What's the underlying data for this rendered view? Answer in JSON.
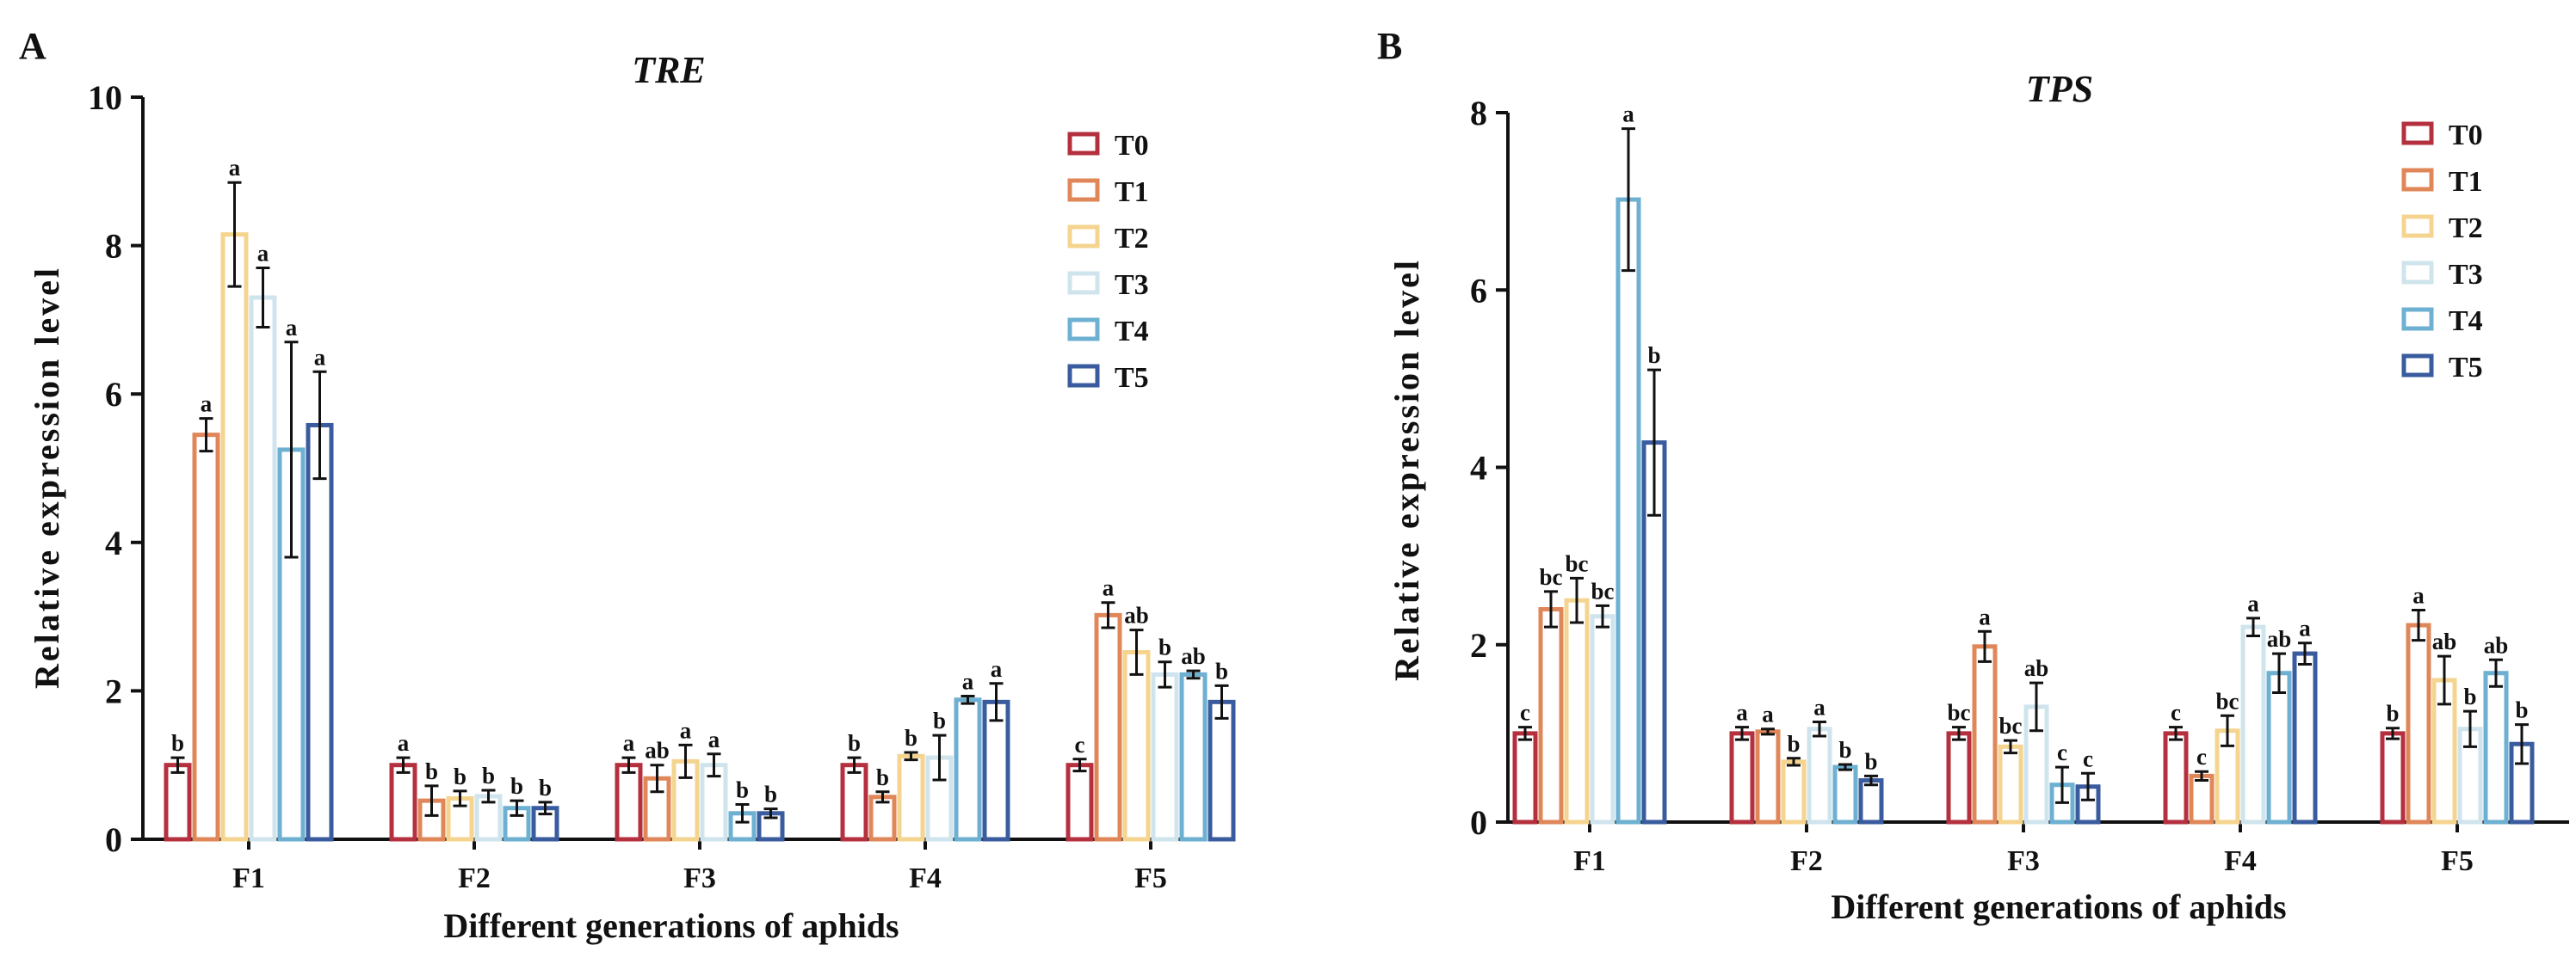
{
  "chart_data": [
    {
      "type": "bar",
      "panel_label": "A",
      "title": "TRE",
      "xlabel": "Different generations of aphids",
      "ylabel": "Relative expression level",
      "ylim": [
        0,
        10
      ],
      "yticks": [
        "0",
        "2",
        "4",
        "6",
        "8",
        "10"
      ],
      "categories": [
        "F1",
        "F2",
        "F3",
        "F4",
        "F5"
      ],
      "legend_position": "top-right",
      "series": [
        {
          "name": "T0",
          "color": "#b5303f",
          "values": [
            1.0,
            1.0,
            1.0,
            1.0,
            1.0
          ],
          "errors": [
            0.1,
            0.1,
            0.1,
            0.1,
            0.08
          ],
          "letters": [
            "b",
            "a",
            "a",
            "b",
            "c"
          ]
        },
        {
          "name": "T1",
          "color": "#e0875a",
          "values": [
            5.45,
            0.52,
            0.82,
            0.57,
            3.02
          ],
          "errors": [
            0.22,
            0.2,
            0.18,
            0.07,
            0.17
          ],
          "letters": [
            "a",
            "b",
            "ab",
            "b",
            "a"
          ]
        },
        {
          "name": "T2",
          "color": "#f4d48f",
          "values": [
            8.15,
            0.55,
            1.05,
            1.12,
            2.52
          ],
          "errors": [
            0.7,
            0.1,
            0.22,
            0.05,
            0.3
          ],
          "letters": [
            "a",
            "b",
            "a",
            "b",
            "ab"
          ]
        },
        {
          "name": "T3",
          "color": "#cfe4ec",
          "values": [
            7.3,
            0.58,
            1.0,
            1.1,
            2.22
          ],
          "errors": [
            0.4,
            0.08,
            0.15,
            0.3,
            0.17
          ],
          "letters": [
            "a",
            "b",
            "a",
            "b",
            "b"
          ]
        },
        {
          "name": "T4",
          "color": "#6db0d2",
          "values": [
            5.25,
            0.42,
            0.35,
            1.88,
            2.22
          ],
          "errors": [
            1.45,
            0.1,
            0.12,
            0.05,
            0.05
          ],
          "letters": [
            "a",
            "b",
            "b",
            "a",
            "ab"
          ]
        },
        {
          "name": "T5",
          "color": "#3a5c9e",
          "values": [
            5.58,
            0.42,
            0.35,
            1.85,
            1.85
          ],
          "errors": [
            0.72,
            0.08,
            0.06,
            0.25,
            0.22
          ],
          "letters": [
            "a",
            "b",
            "b",
            "a",
            "b"
          ]
        }
      ]
    },
    {
      "type": "bar",
      "panel_label": "B",
      "title": "TPS",
      "xlabel": "Different generations of aphids",
      "ylabel": "Relative expression level",
      "ylim": [
        0,
        8
      ],
      "yticks": [
        "0",
        "2",
        "4",
        "6",
        "8"
      ],
      "categories": [
        "F1",
        "F2",
        "F3",
        "F4",
        "F5"
      ],
      "legend_position": "top-right",
      "series": [
        {
          "name": "T0",
          "color": "#b5303f",
          "values": [
            1.0,
            1.0,
            1.0,
            1.0,
            1.0
          ],
          "errors": [
            0.07,
            0.07,
            0.07,
            0.07,
            0.06
          ],
          "letters": [
            "c",
            "a",
            "bc",
            "c",
            "b"
          ]
        },
        {
          "name": "T1",
          "color": "#e0875a",
          "values": [
            2.4,
            1.02,
            1.98,
            0.52,
            2.22
          ],
          "errors": [
            0.2,
            0.03,
            0.17,
            0.05,
            0.17
          ],
          "letters": [
            "bc",
            "a",
            "a",
            "c",
            "a"
          ]
        },
        {
          "name": "T2",
          "color": "#f4d48f",
          "values": [
            2.5,
            0.68,
            0.85,
            1.03,
            1.6
          ],
          "errors": [
            0.25,
            0.04,
            0.07,
            0.17,
            0.27
          ],
          "letters": [
            "bc",
            "b",
            "bc",
            "bc",
            "ab"
          ]
        },
        {
          "name": "T3",
          "color": "#cfe4ec",
          "values": [
            2.32,
            1.05,
            1.3,
            2.2,
            1.05
          ],
          "errors": [
            0.12,
            0.08,
            0.27,
            0.1,
            0.2
          ],
          "letters": [
            "bc",
            "a",
            "ab",
            "a",
            "b"
          ]
        },
        {
          "name": "T4",
          "color": "#6db0d2",
          "values": [
            7.02,
            0.62,
            0.42,
            1.68,
            1.68
          ],
          "errors": [
            0.8,
            0.03,
            0.2,
            0.22,
            0.15
          ],
          "letters": [
            "a",
            "b",
            "c",
            "ab",
            "ab"
          ]
        },
        {
          "name": "T5",
          "color": "#3a5c9e",
          "values": [
            4.28,
            0.47,
            0.4,
            1.9,
            0.88
          ],
          "errors": [
            0.82,
            0.05,
            0.15,
            0.12,
            0.22
          ],
          "letters": [
            "b",
            "b",
            "c",
            "a",
            "b"
          ]
        }
      ]
    }
  ]
}
